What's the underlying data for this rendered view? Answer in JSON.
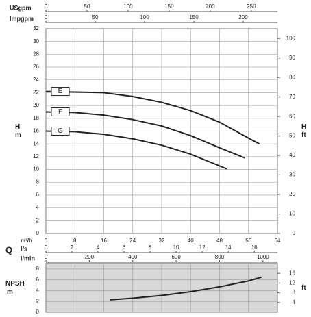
{
  "chart_data": [
    {
      "type": "line",
      "y_label": "H",
      "y_unit": "m",
      "y2_label": "H",
      "y2_unit": "ft",
      "x_label": "m³/h",
      "xlim": [
        0,
        64
      ],
      "xticks": [
        0,
        8,
        16,
        24,
        32,
        40,
        48,
        56,
        64
      ],
      "ylim": [
        0,
        32
      ],
      "yticks": [
        0,
        2,
        4,
        6,
        8,
        10,
        12,
        14,
        16,
        18,
        20,
        22,
        24,
        26,
        28,
        30,
        32
      ],
      "y2lim": [
        0,
        105
      ],
      "y2ticks": [
        0,
        10,
        20,
        30,
        40,
        50,
        60,
        70,
        80,
        90,
        100
      ],
      "grid": true,
      "side_label": "Q",
      "extra_x_axes": [
        {
          "label": "USgpm",
          "position": "top",
          "xlim": [
            0,
            281.8
          ],
          "xticks": [
            0,
            50,
            100,
            150,
            200,
            250
          ]
        },
        {
          "label": "Impgpm",
          "position": "top",
          "xlim": [
            0,
            234.7
          ],
          "xticks": [
            0,
            50,
            100,
            150,
            200
          ]
        },
        {
          "label": "l/s",
          "position": "bottom",
          "xlim": [
            0,
            17.78
          ],
          "xticks": [
            0,
            2,
            4,
            6,
            8,
            10,
            12,
            14,
            16
          ]
        },
        {
          "label": "l/min",
          "position": "bottom",
          "xlim": [
            0,
            1066.7
          ],
          "xticks": [
            0,
            200,
            400,
            600,
            800,
            1000
          ]
        }
      ],
      "series": [
        {
          "name": "E",
          "color": "#222222",
          "x": [
            0,
            16,
            24,
            32,
            40,
            48,
            56,
            59
          ],
          "values": [
            22.2,
            22,
            21.4,
            20.5,
            19.2,
            17.4,
            14.9,
            14
          ]
        },
        {
          "name": "F",
          "color": "#222222",
          "x": [
            0,
            8,
            16,
            24,
            32,
            40,
            48,
            55
          ],
          "values": [
            19,
            18.9,
            18.5,
            17.8,
            16.8,
            15.3,
            13.4,
            11.8
          ]
        },
        {
          "name": "G",
          "color": "#222222",
          "x": [
            0,
            8,
            16,
            24,
            32,
            40,
            50
          ],
          "values": [
            16,
            15.9,
            15.5,
            14.8,
            13.8,
            12.4,
            10.1
          ]
        }
      ]
    },
    {
      "type": "line",
      "y_label": "NPSH",
      "y_unit": "m",
      "y2_unit": "ft",
      "xlim": [
        0,
        64
      ],
      "ylim": [
        0,
        9
      ],
      "yticks": [
        0,
        2,
        4,
        6,
        8
      ],
      "y2lim": [
        0,
        20
      ],
      "y2ticks": [
        4,
        8,
        12,
        16
      ],
      "grid": true,
      "background": "#d9d9d9",
      "series": [
        {
          "color": "#222222",
          "x": [
            17.6,
            24,
            32,
            40,
            48,
            56,
            59.6
          ],
          "values": [
            2.3,
            2.6,
            3.1,
            3.8,
            4.7,
            5.8,
            6.5
          ]
        }
      ]
    }
  ]
}
